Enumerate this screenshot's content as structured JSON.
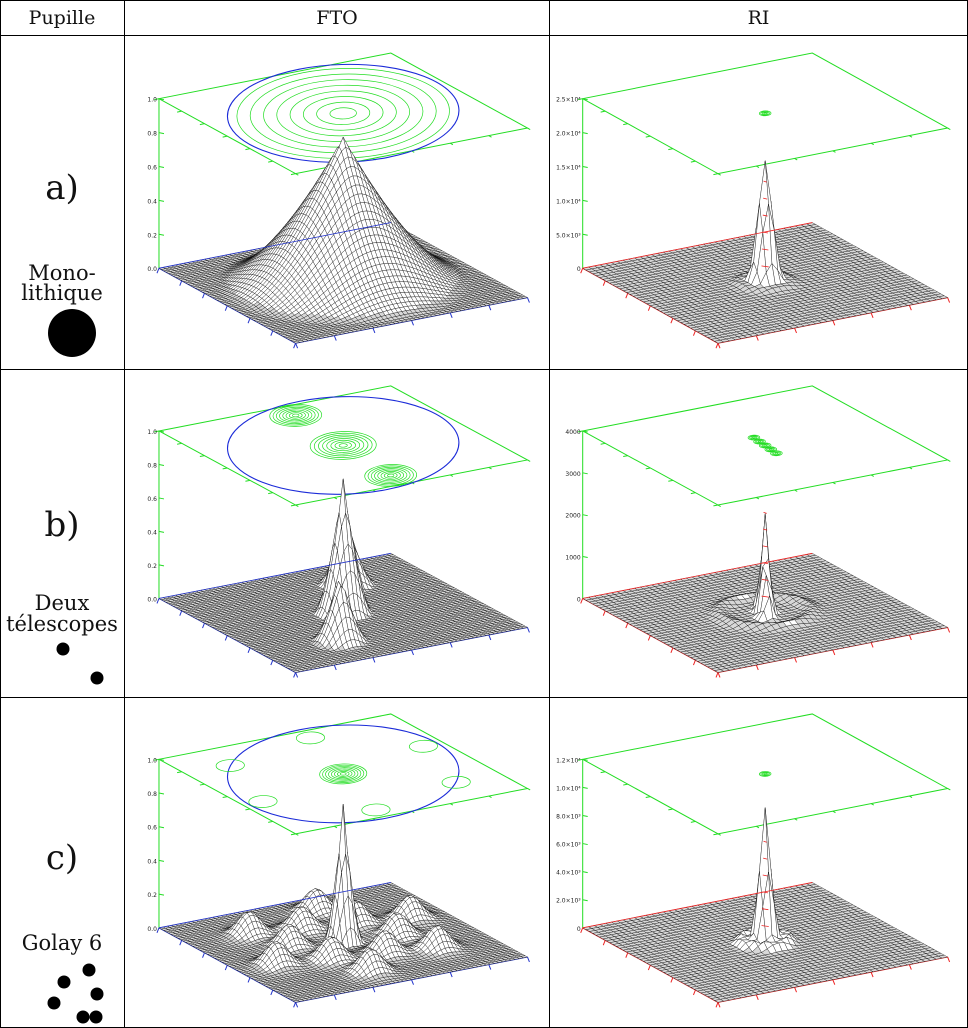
{
  "headers": {
    "pupil": "Pupille",
    "mtf": "FTO",
    "psf": "RI"
  },
  "colors": {
    "wire": "#000000",
    "contour": "#22dd22",
    "circle": "#1b2bd8",
    "red_axis": "#ee2222",
    "blue_axis": "#2233cc"
  },
  "rows": [
    {
      "letter": "a)",
      "name_lines": [
        "Mono-",
        "lithique"
      ],
      "aperture": "monolithic-disk",
      "fto_ticks": [
        "0.0",
        "0.2",
        "0.4",
        "0.6",
        "0.8",
        "1.0"
      ],
      "ri_ticks": [
        "0",
        "5.0×10³",
        "1.0×10⁴",
        "1.5×10⁴",
        "2.0×10⁴",
        "2.5×10⁴"
      ]
    },
    {
      "letter": "b)",
      "name_lines": [
        "Deux",
        "télescopes"
      ],
      "aperture": "two-disks",
      "fto_ticks": [
        "0.0",
        "0.2",
        "0.4",
        "0.6",
        "0.8",
        "1.0"
      ],
      "ri_ticks": [
        "0",
        "1000",
        "2000",
        "3000",
        "4000"
      ]
    },
    {
      "letter": "c)",
      "name_lines": [
        "Golay 6"
      ],
      "aperture": "golay-6",
      "fto_ticks": [
        "0.0",
        "0.2",
        "0.4",
        "0.6",
        "0.8",
        "1.0"
      ],
      "ri_ticks": [
        "0",
        "2.0×10³",
        "4.0×10³",
        "6.0×10³",
        "8.0×10³",
        "1.0×10⁴",
        "1.2×10⁴"
      ]
    }
  ]
}
